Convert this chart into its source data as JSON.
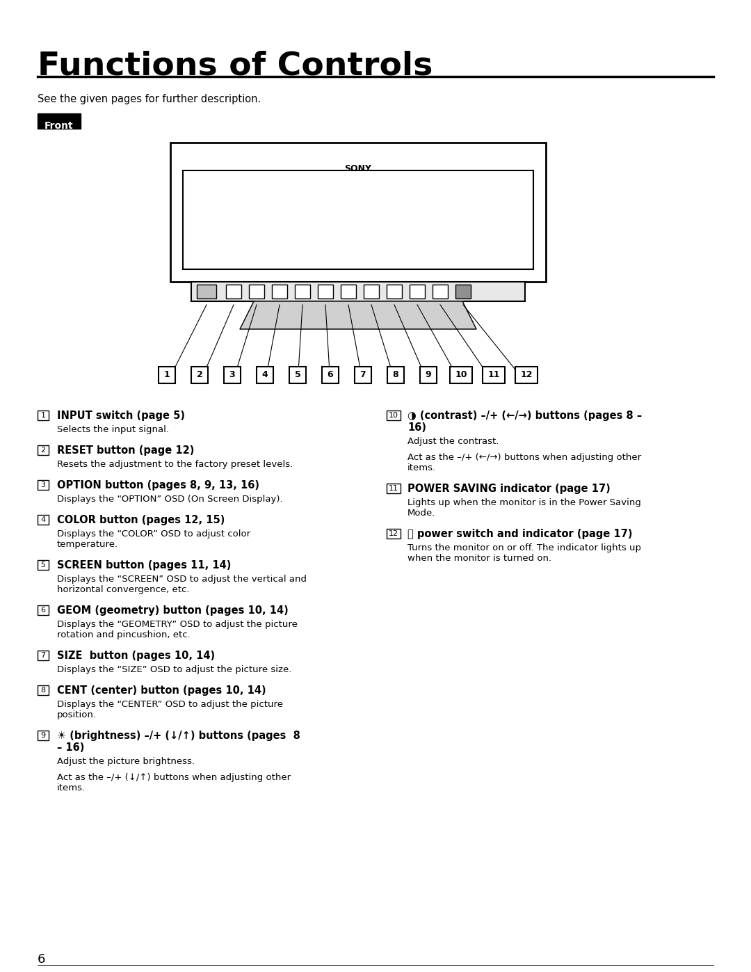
{
  "title": "Functions of Controls",
  "subtitle": "See the given pages for further description.",
  "front_label": "Front",
  "bg_color": "#ffffff",
  "text_color": "#000000",
  "page_number": "6",
  "left_items": [
    {
      "num": "1",
      "bold_text": "INPUT switch (page 5)",
      "normal_text": "Selects the input signal."
    },
    {
      "num": "2",
      "bold_text": "RESET button (page 12)",
      "normal_text": "Resets the adjustment to the factory preset levels."
    },
    {
      "num": "3",
      "bold_text": "OPTION button (pages 8, 9, 13, 16)",
      "normal_text": "Displays the “OPTION” OSD (On Screen Display)."
    },
    {
      "num": "4",
      "bold_text": "COLOR button (pages 12, 15)",
      "normal_text": "Displays the “COLOR” OSD to adjust color\ntemperature."
    },
    {
      "num": "5",
      "bold_text": "SCREEN button (pages 11, 14)",
      "normal_text": "Displays the “SCREEN” OSD to adjust the vertical and\nhorizontal convergence, etc."
    },
    {
      "num": "6",
      "bold_text": "GEOM (geometry) button (pages 10, 14)",
      "normal_text": "Displays the “GEOMETRY” OSD to adjust the picture\nrotation and pincushion, etc."
    },
    {
      "num": "7",
      "bold_text": "SIZE  button (pages 10, 14)",
      "normal_text": "Displays the “SIZE” OSD to adjust the picture size."
    },
    {
      "num": "8",
      "bold_text": "CENT (center) button (pages 10, 14)",
      "normal_text": "Displays the “CENTER” OSD to adjust the picture\nposition."
    },
    {
      "num": "9",
      "bold_text": "☀ (brightness) –/+ (↓/↑) buttons (pages  8\n– 16)",
      "normal_text": "Adjust the picture brightness.\n\nAct as the –/+ (↓/↑) buttons when adjusting other\nitems."
    }
  ],
  "right_items": [
    {
      "num": "10",
      "bold_text": "◑ (contrast) –/+ (←/→) buttons (pages 8 –\n16)",
      "normal_text": "Adjust the contrast.\n\nAct as the –/+ (←/→) buttons when adjusting other\nitems."
    },
    {
      "num": "11",
      "bold_text": "POWER SAVING indicator (page 17)",
      "normal_text": "Lights up when the monitor is in the Power Saving\nMode."
    },
    {
      "num": "12",
      "bold_text": "⏻ power switch and indicator (page 17)",
      "normal_text": "Turns the monitor on or off. The indicator lights up\nwhen the monitor is turned on."
    }
  ]
}
